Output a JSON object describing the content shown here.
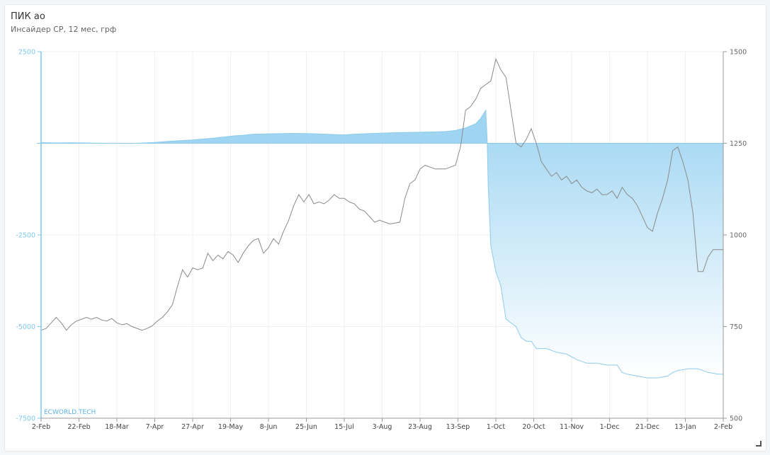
{
  "header": {
    "title": "ПИК ао",
    "subtitle": "Инсайдер СР, 12 мес, грф"
  },
  "watermark": "ECWORLD.TECH",
  "colors": {
    "area": "#9fd5f2",
    "area_fade": "#ffffff",
    "area_line": "#8ccbea",
    "price_line": "#8a8a8a",
    "left_axis": "#7ec8ee",
    "grid": "#eef0f2"
  },
  "chart_data": {
    "type": "area",
    "xlabel": "",
    "ylabel_left": "",
    "ylabel_right": "",
    "x_ticks": [
      "2-Feb",
      "22-Feb",
      "18-Mar",
      "7-Apr",
      "27-Apr",
      "19-May",
      "8-Jun",
      "25-Jun",
      "15-Jul",
      "3-Aug",
      "23-Aug",
      "13-Sep",
      "1-Oct",
      "20-Oct",
      "11-Nov",
      "1-Dec",
      "21-Dec",
      "13-Jan",
      "2-Feb"
    ],
    "left_axis": {
      "ticks": [
        2500,
        -2500,
        -5000,
        -7500
      ],
      "ylim": [
        -7500,
        2500
      ]
    },
    "right_axis": {
      "ticks": [
        1500,
        1250,
        1000,
        750,
        500
      ],
      "ylim": [
        500,
        1500
      ]
    },
    "grid": true,
    "series": [
      {
        "axis": "left",
        "style": "area",
        "points": [
          [
            0,
            20
          ],
          [
            3,
            10
          ],
          [
            6,
            15
          ],
          [
            10,
            5
          ],
          [
            14,
            0
          ],
          [
            18,
            -5
          ],
          [
            22,
            20
          ],
          [
            26,
            60
          ],
          [
            30,
            90
          ],
          [
            34,
            140
          ],
          [
            36,
            170
          ],
          [
            38,
            200
          ],
          [
            40,
            220
          ],
          [
            42,
            250
          ],
          [
            46,
            260
          ],
          [
            50,
            270
          ],
          [
            54,
            260
          ],
          [
            58,
            240
          ],
          [
            60,
            230
          ],
          [
            62,
            250
          ],
          [
            66,
            270
          ],
          [
            70,
            290
          ],
          [
            74,
            300
          ],
          [
            78,
            310
          ],
          [
            80,
            320
          ],
          [
            82,
            350
          ],
          [
            84,
            420
          ],
          [
            86,
            530
          ],
          [
            87,
            680
          ],
          [
            88,
            900
          ],
          [
            88.3,
            0
          ],
          [
            88.5,
            -1200
          ],
          [
            89,
            -2800
          ],
          [
            90,
            -3500
          ],
          [
            91,
            -3900
          ],
          [
            92,
            -4800
          ],
          [
            94,
            -5000
          ],
          [
            95,
            -5300
          ],
          [
            96,
            -5400
          ],
          [
            97,
            -5400
          ],
          [
            98,
            -5600
          ],
          [
            100,
            -5600
          ],
          [
            102,
            -5700
          ],
          [
            104,
            -5750
          ],
          [
            106,
            -5900
          ],
          [
            108,
            -6000
          ],
          [
            110,
            -6000
          ],
          [
            112,
            -6050
          ],
          [
            114,
            -6050
          ],
          [
            115,
            -6250
          ],
          [
            116,
            -6300
          ],
          [
            118,
            -6350
          ],
          [
            120,
            -6400
          ],
          [
            122,
            -6400
          ],
          [
            124,
            -6350
          ],
          [
            125,
            -6250
          ],
          [
            126,
            -6200
          ],
          [
            128,
            -6150
          ],
          [
            130,
            -6150
          ],
          [
            132,
            -6250
          ],
          [
            134,
            -6300
          ],
          [
            135,
            -6300
          ]
        ]
      },
      {
        "axis": "right",
        "style": "line",
        "points": [
          [
            0,
            740
          ],
          [
            1,
            745
          ],
          [
            2,
            760
          ],
          [
            3,
            775
          ],
          [
            4,
            760
          ],
          [
            5,
            740
          ],
          [
            6,
            755
          ],
          [
            7,
            765
          ],
          [
            8,
            770
          ],
          [
            9,
            775
          ],
          [
            10,
            770
          ],
          [
            11,
            775
          ],
          [
            12,
            768
          ],
          [
            13,
            765
          ],
          [
            14,
            772
          ],
          [
            15,
            760
          ],
          [
            16,
            755
          ],
          [
            17,
            758
          ],
          [
            18,
            750
          ],
          [
            19,
            745
          ],
          [
            20,
            740
          ],
          [
            21,
            745
          ],
          [
            22,
            752
          ],
          [
            23,
            765
          ],
          [
            24,
            775
          ],
          [
            25,
            790
          ],
          [
            26,
            810
          ],
          [
            27,
            860
          ],
          [
            28,
            905
          ],
          [
            29,
            885
          ],
          [
            30,
            910
          ],
          [
            31,
            905
          ],
          [
            32,
            910
          ],
          [
            33,
            950
          ],
          [
            34,
            930
          ],
          [
            35,
            945
          ],
          [
            36,
            935
          ],
          [
            37,
            955
          ],
          [
            38,
            945
          ],
          [
            39,
            925
          ],
          [
            40,
            950
          ],
          [
            41,
            970
          ],
          [
            42,
            985
          ],
          [
            43,
            990
          ],
          [
            44,
            950
          ],
          [
            45,
            965
          ],
          [
            46,
            990
          ],
          [
            47,
            975
          ],
          [
            48,
            1010
          ],
          [
            49,
            1040
          ],
          [
            50,
            1080
          ],
          [
            51,
            1110
          ],
          [
            52,
            1090
          ],
          [
            53,
            1110
          ],
          [
            54,
            1085
          ],
          [
            55,
            1090
          ],
          [
            56,
            1085
          ],
          [
            57,
            1095
          ],
          [
            58,
            1110
          ],
          [
            59,
            1100
          ],
          [
            60,
            1100
          ],
          [
            61,
            1090
          ],
          [
            62,
            1085
          ],
          [
            63,
            1070
          ],
          [
            64,
            1065
          ],
          [
            65,
            1050
          ],
          [
            66,
            1035
          ],
          [
            67,
            1040
          ],
          [
            68,
            1035
          ],
          [
            69,
            1030
          ],
          [
            70,
            1032
          ],
          [
            71,
            1035
          ],
          [
            72,
            1100
          ],
          [
            73,
            1140
          ],
          [
            74,
            1150
          ],
          [
            75,
            1180
          ],
          [
            76,
            1190
          ],
          [
            77,
            1185
          ],
          [
            78,
            1180
          ],
          [
            79,
            1180
          ],
          [
            80,
            1180
          ],
          [
            81,
            1185
          ],
          [
            82,
            1190
          ],
          [
            83,
            1240
          ],
          [
            84,
            1340
          ],
          [
            85,
            1350
          ],
          [
            86,
            1370
          ],
          [
            87,
            1400
          ],
          [
            88,
            1410
          ],
          [
            89,
            1420
          ],
          [
            90,
            1480
          ],
          [
            91,
            1450
          ],
          [
            92,
            1430
          ],
          [
            93,
            1340
          ],
          [
            94,
            1250
          ],
          [
            95,
            1240
          ],
          [
            96,
            1260
          ],
          [
            97,
            1290
          ],
          [
            98,
            1250
          ],
          [
            99,
            1200
          ],
          [
            100,
            1180
          ],
          [
            101,
            1160
          ],
          [
            102,
            1170
          ],
          [
            103,
            1150
          ],
          [
            104,
            1160
          ],
          [
            105,
            1140
          ],
          [
            106,
            1150
          ],
          [
            107,
            1130
          ],
          [
            108,
            1120
          ],
          [
            109,
            1115
          ],
          [
            110,
            1125
          ],
          [
            111,
            1110
          ],
          [
            112,
            1110
          ],
          [
            113,
            1120
          ],
          [
            114,
            1100
          ],
          [
            115,
            1130
          ],
          [
            116,
            1110
          ],
          [
            117,
            1100
          ],
          [
            118,
            1080
          ],
          [
            119,
            1050
          ],
          [
            120,
            1020
          ],
          [
            121,
            1010
          ],
          [
            122,
            1060
          ],
          [
            123,
            1100
          ],
          [
            124,
            1150
          ],
          [
            125,
            1230
          ],
          [
            126,
            1240
          ],
          [
            127,
            1200
          ],
          [
            128,
            1150
          ],
          [
            129,
            1060
          ],
          [
            130,
            900
          ],
          [
            131,
            900
          ],
          [
            132,
            940
          ],
          [
            133,
            960
          ],
          [
            134,
            960
          ],
          [
            135,
            960
          ]
        ]
      }
    ]
  }
}
